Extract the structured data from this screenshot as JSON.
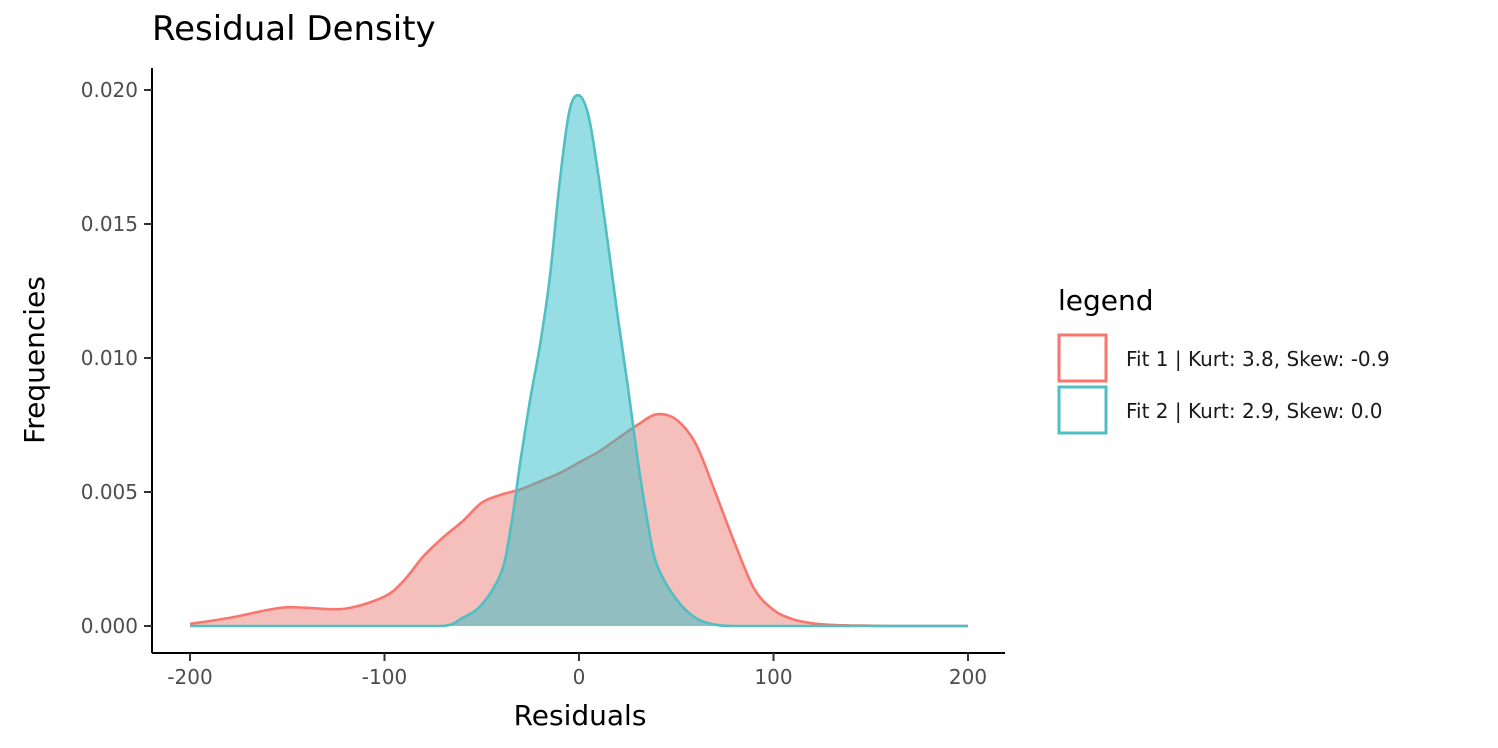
{
  "chart_data": {
    "type": "area",
    "title": "Residual Density",
    "xlabel": "Residuals",
    "ylabel": "Frequencies",
    "xlim": [
      -200,
      200
    ],
    "ylim": [
      0,
      0.02
    ],
    "x_ticks": [
      "-200",
      "-100",
      "0",
      "100",
      "200"
    ],
    "y_ticks": [
      "0.000",
      "0.005",
      "0.010",
      "0.015",
      "0.020"
    ],
    "grid": false,
    "legend": {
      "title": "legend",
      "position": "right"
    },
    "series": [
      {
        "name": "Fit 1 | Kurt: 3.8, Skew: -0.9",
        "color": "#F8766D",
        "fill": "rgba(232,114,104,0.45)",
        "x": [
          -200,
          -180,
          -160,
          -150,
          -140,
          -120,
          -100,
          -90,
          -80,
          -70,
          -60,
          -50,
          -40,
          -30,
          -20,
          -10,
          0,
          10,
          20,
          30,
          40,
          50,
          60,
          70,
          80,
          90,
          100,
          110,
          120,
          130,
          140,
          150,
          160,
          180,
          200
        ],
        "y": [
          8e-05,
          0.0003,
          0.0006,
          0.0007,
          0.00068,
          0.00065,
          0.0011,
          0.0017,
          0.0026,
          0.0033,
          0.0039,
          0.0046,
          0.0049,
          0.0051,
          0.0054,
          0.0057,
          0.0061,
          0.0065,
          0.007,
          0.0075,
          0.0079,
          0.0077,
          0.0068,
          0.005,
          0.0031,
          0.0014,
          0.0006,
          0.00025,
          0.0001,
          4e-05,
          2e-05,
          1e-05,
          0.0,
          0.0,
          0.0
        ]
      },
      {
        "name": "Fit 2 | Kurt: 2.9, Skew: 0.0",
        "color": "#4FBFC4",
        "fill": "rgba(45,190,200,0.5)",
        "x": [
          -200,
          -100,
          -70,
          -60,
          -50,
          -40,
          -35,
          -30,
          -25,
          -20,
          -15,
          -10,
          -5,
          0,
          5,
          10,
          15,
          20,
          25,
          30,
          35,
          40,
          50,
          60,
          70,
          80,
          100,
          200
        ],
        "y": [
          0.0,
          0.0,
          0.0,
          0.0003,
          0.0008,
          0.002,
          0.0037,
          0.0062,
          0.0085,
          0.0105,
          0.013,
          0.0165,
          0.0192,
          0.0198,
          0.019,
          0.0168,
          0.0142,
          0.0115,
          0.009,
          0.0063,
          0.004,
          0.0023,
          0.001,
          0.0003,
          5e-05,
          0.0,
          0.0,
          0.0
        ]
      }
    ]
  }
}
